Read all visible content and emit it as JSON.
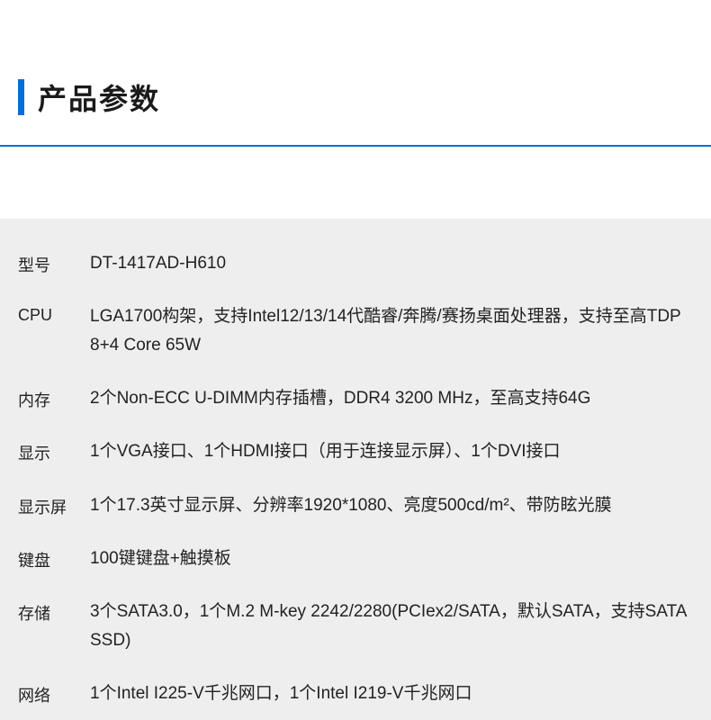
{
  "header": {
    "title": "产品参数",
    "accent_color": "#0a6dd6"
  },
  "specs": [
    {
      "label": "型号",
      "value": "DT-1417AD-H610"
    },
    {
      "label": "CPU",
      "value": "LGA1700构架，支持Intel12/13/14代酷睿/奔腾/赛扬桌面处理器，支持至高TDP 8+4 Core 65W"
    },
    {
      "label": "内存",
      "value": "2个Non-ECC U-DIMM内存插槽，DDR4 3200 MHz，至高支持64G"
    },
    {
      "label": "显示",
      "value": "1个VGA接口、1个HDMI接口（用于连接显示屏）、1个DVI接口"
    },
    {
      "label": "显示屏",
      "value": "1个17.3英寸显示屏、分辨率1920*1080、亮度500cd/m²、带防眩光膜"
    },
    {
      "label": "键盘",
      "value": "100键键盘+触摸板"
    },
    {
      "label": "存储",
      "value": "3个SATA3.0，1个M.2 M-key 2242/2280(PCIex2/SATA，默认SATA，支持SATA SSD)"
    },
    {
      "label": "网络",
      "value": "1个Intel I225-V千兆网口，1个Intel I219-V千兆网口"
    }
  ]
}
